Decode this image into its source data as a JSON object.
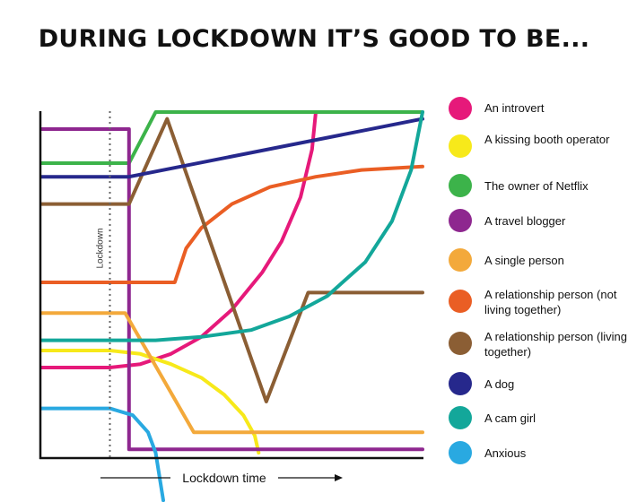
{
  "title": "DURING LOCKDOWN IT’S GOOD TO BE...",
  "chart_data": {
    "type": "line",
    "title": "DURING LOCKDOWN IT’S GOOD TO BE...",
    "xlabel": "Lockdown time",
    "ylabel": "",
    "xlim": [
      0,
      100
    ],
    "ylim": [
      0,
      100
    ],
    "lockdown_marker": {
      "x": 18,
      "label": "Lockdown"
    },
    "grid": false,
    "legend_position": "right",
    "series": [
      {
        "name": "An introvert",
        "color": "#e6197a",
        "points": [
          [
            0,
            25
          ],
          [
            18,
            25
          ],
          [
            26,
            26
          ],
          [
            34,
            29
          ],
          [
            42,
            34
          ],
          [
            50,
            42
          ],
          [
            58,
            53
          ],
          [
            63,
            62
          ],
          [
            68,
            75
          ],
          [
            71,
            89
          ],
          [
            72,
            100
          ]
        ]
      },
      {
        "name": "A kissing booth operator",
        "color": "#f7e91a",
        "points": [
          [
            0,
            30
          ],
          [
            18,
            30
          ],
          [
            26,
            29
          ],
          [
            34,
            26
          ],
          [
            42,
            22
          ],
          [
            48,
            17
          ],
          [
            53,
            11
          ],
          [
            56,
            5
          ],
          [
            57,
            0
          ]
        ]
      },
      {
        "name": "The owner of Netflix",
        "color": "#3cb34a",
        "points": [
          [
            0,
            85
          ],
          [
            23,
            85
          ],
          [
            30,
            100
          ],
          [
            100,
            100
          ]
        ]
      },
      {
        "name": "A travel blogger",
        "color": "#8e278f",
        "points": [
          [
            0,
            95
          ],
          [
            23,
            95
          ],
          [
            23,
            1
          ],
          [
            100,
            1
          ]
        ]
      },
      {
        "name": "A single person",
        "color": "#f3a93b",
        "points": [
          [
            0,
            41
          ],
          [
            22,
            41
          ],
          [
            40,
            6
          ],
          [
            100,
            6
          ]
        ]
      },
      {
        "name": "A relationship person (not living together)",
        "color": "#ea5e24",
        "points": [
          [
            0,
            50
          ],
          [
            35,
            50
          ],
          [
            38,
            60
          ],
          [
            42,
            66
          ],
          [
            50,
            73
          ],
          [
            60,
            78
          ],
          [
            72,
            81
          ],
          [
            84,
            83
          ],
          [
            100,
            84
          ]
        ]
      },
      {
        "name": "A relationship person (living together)",
        "color": "#8b5e34",
        "points": [
          [
            0,
            73
          ],
          [
            23,
            73
          ],
          [
            33,
            98
          ],
          [
            59,
            15
          ],
          [
            70,
            47
          ],
          [
            100,
            47
          ]
        ]
      },
      {
        "name": "A dog",
        "color": "#26288c",
        "points": [
          [
            0,
            81
          ],
          [
            23,
            81
          ],
          [
            100,
            98
          ]
        ]
      },
      {
        "name": "A cam girl",
        "color": "#13a79a",
        "points": [
          [
            0,
            33
          ],
          [
            30,
            33
          ],
          [
            42,
            34
          ],
          [
            55,
            36
          ],
          [
            65,
            40
          ],
          [
            75,
            46
          ],
          [
            85,
            56
          ],
          [
            92,
            68
          ],
          [
            97,
            83
          ],
          [
            100,
            100
          ]
        ]
      },
      {
        "name": "Anxious",
        "color": "#29a9e1",
        "points": [
          [
            0,
            13
          ],
          [
            18,
            13
          ],
          [
            24,
            11
          ],
          [
            28,
            6
          ],
          [
            30,
            0
          ],
          [
            32,
            -14
          ]
        ]
      }
    ]
  },
  "legend": [
    {
      "label": "An introvert",
      "color": "#e6197a"
    },
    {
      "label": "A kissing booth operator",
      "color": "#f7e91a"
    },
    {
      "label": "The owner of Netflix",
      "color": "#3cb34a"
    },
    {
      "label": "A travel blogger",
      "color": "#8e278f"
    },
    {
      "label": "A single person",
      "color": "#f3a93b"
    },
    {
      "label": "A relationship person (not living together)",
      "color": "#ea5e24"
    },
    {
      "label": "A relationship person (living together)",
      "color": "#8b5e34"
    },
    {
      "label": "A dog",
      "color": "#26288c"
    },
    {
      "label": "A cam girl",
      "color": "#13a79a"
    },
    {
      "label": "Anxious",
      "color": "#29a9e1"
    }
  ]
}
